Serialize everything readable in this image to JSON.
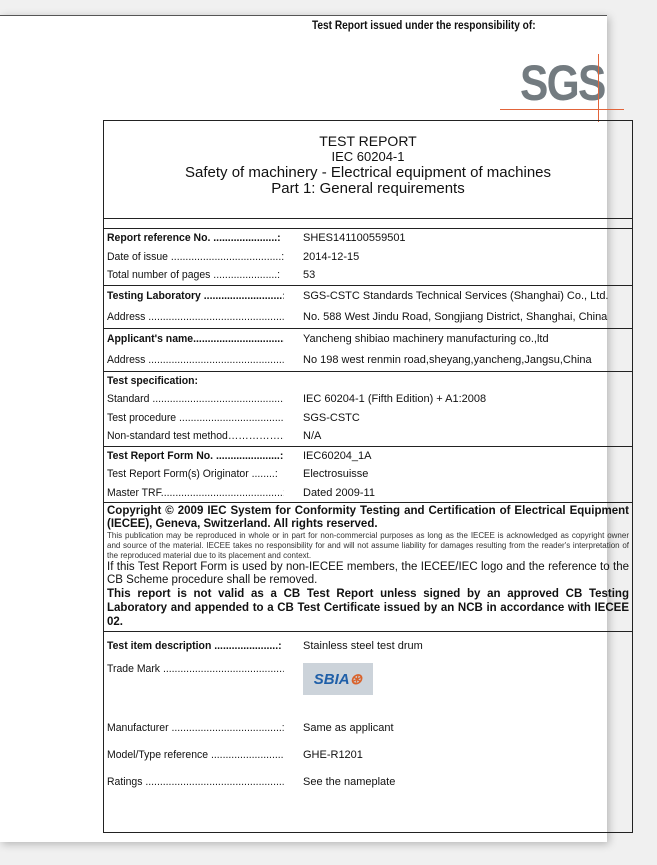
{
  "header": {
    "issued_by": "Test Report issued under the responsibility of:",
    "logo": "SGS"
  },
  "title": {
    "line1": "TEST REPORT",
    "line2": "IEC 60204-1",
    "line3": "Safety of machinery - Electrical equipment of machines",
    "line4": "Part 1: General requirements"
  },
  "groups": [
    [
      {
        "label": "Report reference No. ......................:",
        "value": "SHES141100559501",
        "bold": true
      },
      {
        "label": "Date of issue ......................................:",
        "value": "2014-12-15"
      },
      {
        "label": "Total number of pages ......................:",
        "value": "53"
      }
    ],
    [
      {
        "label": "Testing Laboratory ...........................:",
        "value": "SGS-CSTC Standards Technical Services (Shanghai) Co., Ltd.",
        "bold": true
      },
      {
        "label": "Address ...............................................:",
        "value": "No. 588 West Jindu Road, Songjiang District, Shanghai, China"
      }
    ],
    [
      {
        "label": "Applicant's name................................:",
        "value": "Yancheng shibiao machinery manufacturing co.,ltd",
        "bold": true
      },
      {
        "label": "Address ...............................................:",
        "value": "No 198 west renmin road,sheyang,yancheng,Jangsu,China"
      }
    ],
    [
      {
        "label": "Test specification:",
        "value": "",
        "bold": true
      },
      {
        "label": "Standard ...............................................:",
        "value": "IEC 60204-1 (Fifth Edition) + A1:2008"
      },
      {
        "label": "Test procedure ....................................:",
        "value": "SGS-CSTC"
      },
      {
        "label": "Non-standard test method……………..:",
        "value": "N/A"
      }
    ],
    [
      {
        "label": "Test Report Form No. ......................:",
        "value": "IEC60204_1A",
        "bold": true
      },
      {
        "label": "Test Report Form(s) Originator ........:",
        "value": "Electrosuisse"
      },
      {
        "label": "Master TRF..........................................:",
        "value": "Dated 2009-11"
      }
    ]
  ],
  "copyright": {
    "c1": "Copyright © 2009 IEC System for Conformity Testing and Certification of Electrical Equipment (IECEE), Geneva, Switzerland. All rights reserved.",
    "c2": "This publication may be reproduced in whole or in part for non-commercial purposes as long as the IECEE is acknowledged as copyright owner and source of the material. IECEE takes no responsibility for and will not assume liability for damages resulting from the reader's interpretation of the reproduced material due to its placement and context.",
    "c3": "If this Test Report Form is used by non-IECEE members, the IECEE/IEC logo and the reference to the CB Scheme procedure shall be removed.",
    "c4": "This report is not valid as a CB Test Report unless signed by an approved CB Testing Laboratory and appended to a CB Test Certificate issued by an NCB in accordance with IECEE 02."
  },
  "item": {
    "description": {
      "label": "Test item description ......................:",
      "value": "Stainless steel test drum"
    },
    "trade_mark": {
      "label": "Trade Mark ............................................:",
      "logo": "SBIA"
    },
    "manufacturer": {
      "label": "Manufacturer ......................................:",
      "value": "Same as applicant"
    },
    "model": {
      "label": "Model/Type reference .........................:",
      "value": "GHE-R1201"
    },
    "ratings": {
      "label": "Ratings ..................................................:",
      "value": "See the nameplate"
    }
  }
}
